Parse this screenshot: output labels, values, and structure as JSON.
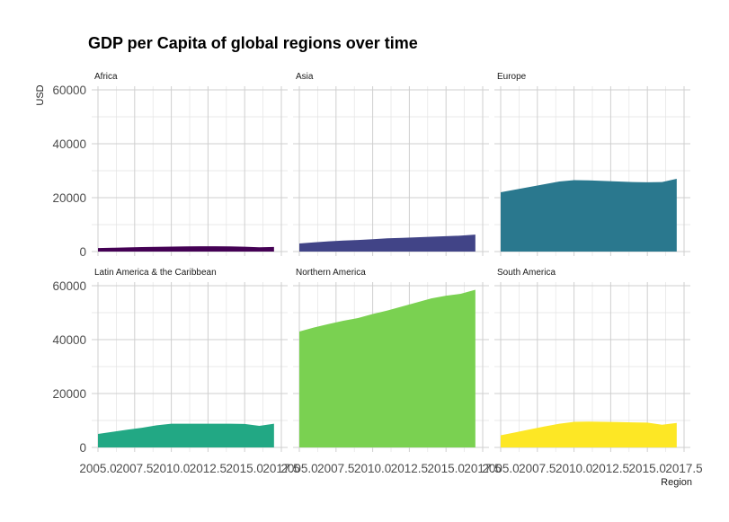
{
  "chart_data": {
    "type": "area",
    "title": "GDP per Capita of global regions over time",
    "xlabel": "Region",
    "ylabel": "USD",
    "xlim": [
      2005,
      2017.5
    ],
    "ylim": [
      0,
      60000
    ],
    "x_ticks": [
      2005.0,
      2007.5,
      2010.0,
      2012.5,
      2015.0,
      2017.5
    ],
    "x_tick_labels": [
      "2005.0",
      "2007.5",
      "2010.0",
      "2012.5",
      "2015.0",
      "2017.5"
    ],
    "y_ticks": [
      0,
      20000,
      40000,
      60000
    ],
    "y_tick_labels": [
      "0",
      "20000",
      "40000",
      "60000"
    ],
    "grid": true,
    "facets": [
      {
        "name": "Africa",
        "color": "#440154",
        "x": [
          2005,
          2006,
          2007,
          2008,
          2009,
          2010,
          2011,
          2012,
          2013,
          2014,
          2015,
          2016,
          2017
        ],
        "values": [
          1300,
          1400,
          1550,
          1650,
          1750,
          1850,
          1900,
          1950,
          1950,
          1900,
          1800,
          1600,
          1700
        ]
      },
      {
        "name": "Asia",
        "color": "#414487",
        "x": [
          2005,
          2006,
          2007,
          2008,
          2009,
          2010,
          2011,
          2012,
          2013,
          2014,
          2015,
          2016,
          2017
        ],
        "values": [
          3000,
          3400,
          3800,
          4100,
          4300,
          4600,
          4900,
          5100,
          5300,
          5500,
          5700,
          5900,
          6300
        ]
      },
      {
        "name": "Europe",
        "color": "#2A788E",
        "x": [
          2005,
          2006,
          2007,
          2008,
          2009,
          2010,
          2011,
          2012,
          2013,
          2014,
          2015,
          2016,
          2017
        ],
        "values": [
          22000,
          23000,
          24000,
          25000,
          26000,
          26500,
          26400,
          26200,
          26000,
          25800,
          25700,
          25800,
          27000
        ]
      },
      {
        "name": "Latin America & the Caribbean",
        "color": "#22A884",
        "x": [
          2005,
          2006,
          2007,
          2008,
          2009,
          2010,
          2011,
          2012,
          2013,
          2014,
          2015,
          2016,
          2017
        ],
        "values": [
          5000,
          5800,
          6600,
          7300,
          8200,
          8800,
          8800,
          8800,
          8800,
          8800,
          8700,
          8000,
          8800
        ]
      },
      {
        "name": "Northern America",
        "color": "#7AD151",
        "x": [
          2005,
          2006,
          2007,
          2008,
          2009,
          2010,
          2011,
          2012,
          2013,
          2014,
          2015,
          2016,
          2017
        ],
        "values": [
          43000,
          44500,
          45800,
          47000,
          48000,
          49500,
          50800,
          52300,
          53800,
          55300,
          56300,
          57000,
          58500
        ]
      },
      {
        "name": "South America",
        "color": "#FDE725",
        "x": [
          2005,
          2006,
          2007,
          2008,
          2009,
          2010,
          2011,
          2012,
          2013,
          2014,
          2015,
          2016,
          2017
        ],
        "values": [
          4500,
          5600,
          6700,
          7800,
          8800,
          9500,
          9600,
          9500,
          9400,
          9300,
          9200,
          8400,
          9100
        ]
      }
    ]
  }
}
